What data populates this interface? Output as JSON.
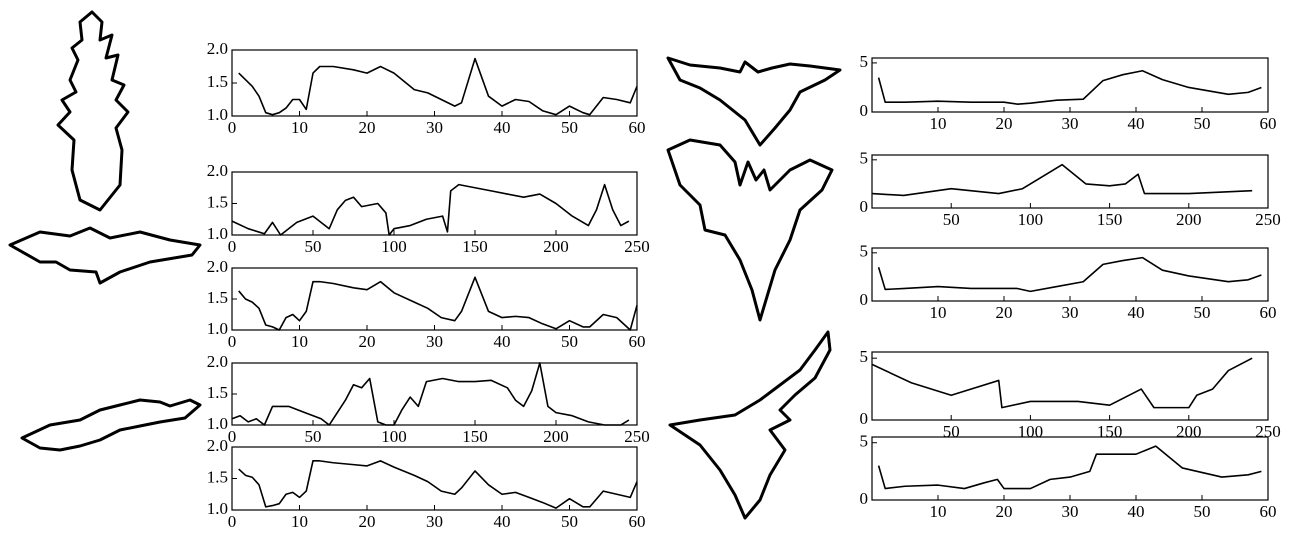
{
  "chart_data": [
    {
      "type": "line",
      "color": "#000000",
      "xlim": [
        0,
        60
      ],
      "ylim": [
        1,
        2
      ],
      "xticks": [
        0,
        10,
        20,
        30,
        40,
        50,
        60
      ],
      "yticks": [
        {
          "value": 1,
          "label": "1.0"
        },
        1.5,
        {
          "value": 2,
          "label": "2.0"
        }
      ],
      "x": [
        1,
        2,
        3,
        4,
        5,
        6,
        7,
        8,
        9,
        10,
        11,
        12,
        13,
        15,
        18,
        20,
        22,
        24,
        27,
        29,
        31,
        33,
        34,
        36,
        38,
        40,
        42,
        44,
        46,
        48,
        50,
        52,
        53,
        55,
        57,
        59,
        60
      ],
      "values": [
        1.65,
        1.55,
        1.45,
        1.3,
        1.05,
        1.02,
        1.05,
        1.12,
        1.25,
        1.25,
        1.1,
        1.65,
        1.75,
        1.75,
        1.7,
        1.65,
        1.75,
        1.65,
        1.4,
        1.35,
        1.25,
        1.15,
        1.2,
        1.87,
        1.3,
        1.15,
        1.25,
        1.22,
        1.08,
        1.02,
        1.15,
        1.05,
        1.02,
        1.28,
        1.25,
        1.2,
        1.45
      ]
    },
    {
      "type": "line",
      "color": "#000000",
      "xlim": [
        0,
        250
      ],
      "ylim": [
        1,
        2
      ],
      "xticks": [
        0,
        50,
        100,
        150,
        200,
        250
      ],
      "yticks": [
        {
          "value": 1,
          "label": "1.0"
        },
        1.5,
        {
          "value": 2,
          "label": "2.0"
        }
      ],
      "x": [
        0,
        10,
        20,
        25,
        30,
        40,
        50,
        60,
        65,
        70,
        75,
        80,
        90,
        95,
        97,
        100,
        110,
        120,
        130,
        133,
        135,
        140,
        150,
        160,
        170,
        180,
        190,
        200,
        210,
        220,
        225,
        230,
        235,
        240,
        245
      ],
      "values": [
        1.22,
        1.1,
        1.02,
        1.2,
        1.0,
        1.2,
        1.3,
        1.1,
        1.4,
        1.55,
        1.6,
        1.45,
        1.5,
        1.35,
        1.0,
        1.1,
        1.15,
        1.25,
        1.3,
        1.05,
        1.7,
        1.8,
        1.75,
        1.7,
        1.65,
        1.6,
        1.65,
        1.5,
        1.3,
        1.15,
        1.4,
        1.8,
        1.4,
        1.15,
        1.22
      ]
    },
    {
      "type": "line",
      "color": "#000000",
      "xlim": [
        0,
        60
      ],
      "ylim": [
        1,
        2
      ],
      "xticks": [
        0,
        10,
        20,
        30,
        40,
        50,
        60
      ],
      "yticks": [
        {
          "value": 1,
          "label": "1.0"
        },
        1.5,
        {
          "value": 2,
          "label": "2.0"
        }
      ],
      "x": [
        1,
        2,
        3,
        4,
        5,
        6,
        7,
        8,
        9,
        10,
        11,
        12,
        13,
        15,
        18,
        20,
        22,
        24,
        27,
        29,
        31,
        33,
        34,
        36,
        38,
        40,
        42,
        44,
        46,
        48,
        50,
        52,
        53,
        55,
        57,
        59,
        60
      ],
      "values": [
        1.63,
        1.5,
        1.45,
        1.35,
        1.08,
        1.05,
        1.0,
        1.2,
        1.25,
        1.15,
        1.3,
        1.78,
        1.78,
        1.75,
        1.68,
        1.65,
        1.78,
        1.6,
        1.45,
        1.35,
        1.2,
        1.15,
        1.3,
        1.85,
        1.3,
        1.2,
        1.22,
        1.2,
        1.1,
        1.02,
        1.15,
        1.05,
        1.05,
        1.25,
        1.2,
        1.0,
        1.4
      ]
    },
    {
      "type": "line",
      "color": "#000000",
      "xlim": [
        0,
        250
      ],
      "ylim": [
        1,
        2
      ],
      "xticks": [
        0,
        50,
        100,
        150,
        200,
        250
      ],
      "yticks": [
        {
          "value": 1,
          "label": "1.0"
        },
        1.5,
        {
          "value": 2,
          "label": "2.0"
        }
      ],
      "x": [
        0,
        5,
        10,
        15,
        20,
        25,
        35,
        45,
        55,
        60,
        70,
        75,
        80,
        85,
        90,
        95,
        100,
        105,
        110,
        115,
        120,
        130,
        140,
        150,
        160,
        170,
        175,
        180,
        185,
        190,
        195,
        200,
        210,
        220,
        230,
        240,
        245
      ],
      "values": [
        1.1,
        1.15,
        1.05,
        1.1,
        1.0,
        1.3,
        1.3,
        1.2,
        1.1,
        1.0,
        1.4,
        1.65,
        1.6,
        1.75,
        1.05,
        1.0,
        1.0,
        1.25,
        1.45,
        1.3,
        1.7,
        1.75,
        1.7,
        1.7,
        1.72,
        1.6,
        1.4,
        1.3,
        1.55,
        2.0,
        1.3,
        1.2,
        1.15,
        1.05,
        1.0,
        1.0,
        1.08
      ]
    },
    {
      "type": "line",
      "color": "#000000",
      "xlim": [
        0,
        60
      ],
      "ylim": [
        1,
        2
      ],
      "xticks": [
        0,
        10,
        20,
        30,
        40,
        50,
        60
      ],
      "yticks": [
        {
          "value": 1,
          "label": "1.0"
        },
        1.5,
        {
          "value": 2,
          "label": "2.0"
        }
      ],
      "x": [
        1,
        2,
        3,
        4,
        5,
        6,
        7,
        8,
        9,
        10,
        11,
        12,
        13,
        15,
        18,
        20,
        22,
        24,
        27,
        29,
        31,
        33,
        34,
        36,
        38,
        40,
        42,
        44,
        46,
        48,
        50,
        52,
        53,
        55,
        57,
        59,
        60
      ],
      "values": [
        1.65,
        1.55,
        1.52,
        1.4,
        1.05,
        1.07,
        1.1,
        1.25,
        1.28,
        1.2,
        1.3,
        1.78,
        1.78,
        1.75,
        1.72,
        1.7,
        1.78,
        1.68,
        1.55,
        1.45,
        1.3,
        1.25,
        1.35,
        1.62,
        1.4,
        1.25,
        1.28,
        1.2,
        1.12,
        1.03,
        1.18,
        1.05,
        1.05,
        1.3,
        1.25,
        1.2,
        1.45
      ]
    },
    {
      "type": "line",
      "color": "#000000",
      "xlim": [
        0,
        60
      ],
      "ylim": [
        0,
        5.5
      ],
      "xticks": [
        10,
        20,
        30,
        40,
        50,
        60
      ],
      "yticks": [
        0,
        5
      ],
      "x": [
        1,
        2,
        5,
        10,
        15,
        20,
        22,
        24,
        28,
        32,
        35,
        38,
        41,
        44,
        48,
        54,
        57,
        59
      ],
      "values": [
        3.5,
        1.0,
        1.0,
        1.1,
        1.0,
        1.0,
        0.8,
        0.9,
        1.2,
        1.3,
        3.2,
        3.8,
        4.2,
        3.3,
        2.5,
        1.8,
        2.0,
        2.5
      ]
    },
    {
      "type": "line",
      "color": "#000000",
      "xlim": [
        0,
        250
      ],
      "ylim": [
        0,
        5.5
      ],
      "xticks": [
        50,
        100,
        150,
        200,
        250
      ],
      "yticks": [
        0,
        5
      ],
      "x": [
        0,
        20,
        50,
        80,
        95,
        110,
        120,
        135,
        150,
        160,
        168,
        172,
        200,
        240
      ],
      "values": [
        1.5,
        1.3,
        2.0,
        1.5,
        2.0,
        3.5,
        4.5,
        2.5,
        2.3,
        2.5,
        3.5,
        1.5,
        1.5,
        1.8
      ]
    },
    {
      "type": "line",
      "color": "#000000",
      "xlim": [
        0,
        60
      ],
      "ylim": [
        0,
        5.5
      ],
      "xticks": [
        10,
        20,
        30,
        40,
        50,
        60
      ],
      "yticks": [
        0,
        5
      ],
      "x": [
        1,
        2,
        5,
        10,
        15,
        20,
        22,
        24,
        28,
        32,
        35,
        38,
        41,
        44,
        48,
        54,
        57,
        59
      ],
      "values": [
        3.5,
        1.2,
        1.3,
        1.5,
        1.3,
        1.3,
        1.3,
        1.0,
        1.5,
        2.0,
        3.8,
        4.2,
        4.5,
        3.2,
        2.6,
        2.0,
        2.2,
        2.7
      ]
    },
    {
      "type": "line",
      "color": "#000000",
      "xlim": [
        0,
        250
      ],
      "ylim": [
        0,
        5.5
      ],
      "xticks": [
        50,
        100,
        150,
        200,
        250
      ],
      "yticks": [
        0,
        5
      ],
      "x": [
        0,
        25,
        50,
        80,
        82,
        100,
        130,
        150,
        170,
        178,
        200,
        205,
        215,
        225,
        240
      ],
      "values": [
        4.5,
        3.0,
        2.0,
        3.2,
        1.0,
        1.5,
        1.5,
        1.2,
        2.5,
        1.0,
        1.0,
        2.0,
        2.5,
        4.0,
        5.0
      ]
    },
    {
      "type": "line",
      "color": "#000000",
      "xlim": [
        0,
        60
      ],
      "ylim": [
        0,
        5.5
      ],
      "xticks": [
        10,
        20,
        30,
        40,
        50,
        60
      ],
      "yticks": [
        0,
        5
      ],
      "x": [
        1,
        2,
        5,
        10,
        14,
        17,
        19,
        20,
        24,
        27,
        30,
        33,
        34,
        40,
        43,
        47,
        53,
        57,
        59
      ],
      "values": [
        3.0,
        1.0,
        1.2,
        1.3,
        1.0,
        1.5,
        1.8,
        1.0,
        1.0,
        1.8,
        2.0,
        2.5,
        4.0,
        4.0,
        4.7,
        2.8,
        2.0,
        2.2,
        2.5
      ]
    }
  ]
}
